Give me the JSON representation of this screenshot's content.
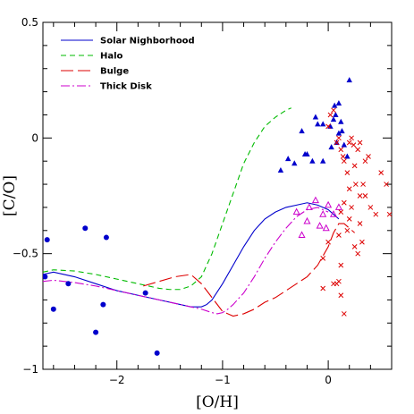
{
  "chart_data": {
    "type": "line",
    "xlabel": "[O/H]",
    "ylabel": "[C/O]",
    "xlim": [
      -2.7,
      0.6
    ],
    "ylim": [
      -1.0,
      0.5
    ],
    "x_ticks": [
      -2,
      -1,
      0
    ],
    "x_tick_labels": [
      "−2",
      "−1",
      "0"
    ],
    "y_ticks": [
      -1,
      -0.5,
      0,
      0.5
    ],
    "y_tick_labels": [
      "−1",
      "−0.5",
      "0",
      "0.5"
    ],
    "legend_position": "top-left",
    "series": [
      {
        "name": "Solar Nighborhood",
        "color": "#0000cc",
        "dash": "solid",
        "x": [
          -2.7,
          -2.6,
          -2.4,
          -2.2,
          -2.0,
          -1.8,
          -1.6,
          -1.4,
          -1.3,
          -1.2,
          -1.15,
          -1.1,
          -1.0,
          -0.9,
          -0.8,
          -0.7,
          -0.6,
          -0.5,
          -0.4,
          -0.3,
          -0.2,
          -0.1,
          0.0,
          0.05,
          0.1
        ],
        "y": [
          -0.59,
          -0.58,
          -0.6,
          -0.63,
          -0.66,
          -0.68,
          -0.7,
          -0.72,
          -0.73,
          -0.73,
          -0.72,
          -0.7,
          -0.63,
          -0.55,
          -0.47,
          -0.4,
          -0.35,
          -0.32,
          -0.3,
          -0.29,
          -0.28,
          -0.29,
          -0.31,
          -0.33,
          -0.35
        ]
      },
      {
        "name": "Halo",
        "color": "#00bb00",
        "dash": "6,4",
        "x": [
          -2.7,
          -2.6,
          -2.4,
          -2.2,
          -2.0,
          -1.8,
          -1.6,
          -1.5,
          -1.4,
          -1.3,
          -1.2,
          -1.1,
          -1.0,
          -0.9,
          -0.8,
          -0.7,
          -0.6,
          -0.5,
          -0.4,
          -0.35
        ],
        "y": [
          -0.58,
          -0.57,
          -0.575,
          -0.59,
          -0.61,
          -0.63,
          -0.65,
          -0.655,
          -0.655,
          -0.64,
          -0.6,
          -0.5,
          -0.37,
          -0.24,
          -0.11,
          -0.02,
          0.05,
          0.09,
          0.12,
          0.13
        ]
      },
      {
        "name": "Bulge",
        "color": "#dd0000",
        "dash": "14,5",
        "x": [
          -1.75,
          -1.6,
          -1.45,
          -1.3,
          -1.2,
          -1.1,
          -1.0,
          -0.9,
          -0.8,
          -0.7,
          -0.6,
          -0.5,
          -0.4,
          -0.3,
          -0.2,
          -0.1,
          0.0,
          0.05,
          0.1,
          0.15,
          0.2,
          0.25
        ],
        "y": [
          -0.64,
          -0.62,
          -0.6,
          -0.59,
          -0.63,
          -0.69,
          -0.75,
          -0.77,
          -0.76,
          -0.74,
          -0.71,
          -0.69,
          -0.66,
          -0.63,
          -0.6,
          -0.55,
          -0.47,
          -0.41,
          -0.37,
          -0.37,
          -0.39,
          -0.41
        ]
      },
      {
        "name": "Thick Disk",
        "color": "#cc00cc",
        "dash": "10,3,2,3",
        "x": [
          -2.7,
          -2.6,
          -2.4,
          -2.2,
          -2.0,
          -1.8,
          -1.6,
          -1.4,
          -1.2,
          -1.1,
          -1.05,
          -1.0,
          -0.95,
          -0.9,
          -0.8,
          -0.7,
          -0.6,
          -0.5,
          -0.4,
          -0.3,
          -0.2,
          -0.1,
          -0.05,
          0.0
        ],
        "y": [
          -0.62,
          -0.615,
          -0.625,
          -0.64,
          -0.66,
          -0.68,
          -0.7,
          -0.72,
          -0.74,
          -0.755,
          -0.76,
          -0.755,
          -0.74,
          -0.72,
          -0.67,
          -0.6,
          -0.52,
          -0.45,
          -0.39,
          -0.34,
          -0.31,
          -0.3,
          -0.31,
          -0.32
        ]
      }
    ],
    "scatter": [
      {
        "marker": "circle",
        "color": "#0000cc",
        "points": [
          [
            -2.68,
            -0.6
          ],
          [
            -2.66,
            -0.44
          ],
          [
            -2.6,
            -0.74
          ],
          [
            -2.46,
            -0.63
          ],
          [
            -2.3,
            -0.39
          ],
          [
            -2.2,
            -0.84
          ],
          [
            -2.13,
            -0.72
          ],
          [
            -2.1,
            -0.43
          ],
          [
            -1.73,
            -0.67
          ],
          [
            -1.62,
            -0.93
          ]
        ]
      },
      {
        "marker": "filled-triangle",
        "color": "#0000cc",
        "points": [
          [
            -0.45,
            -0.14
          ],
          [
            -0.38,
            -0.09
          ],
          [
            -0.32,
            -0.11
          ],
          [
            -0.25,
            0.03
          ],
          [
            -0.2,
            -0.07
          ],
          [
            -0.15,
            -0.1
          ],
          [
            -0.12,
            0.09
          ],
          [
            -0.1,
            0.06
          ],
          [
            -0.05,
            -0.1
          ],
          [
            0.02,
            0.05
          ],
          [
            0.03,
            -0.04
          ],
          [
            0.05,
            0.08
          ],
          [
            0.06,
            0.14
          ],
          [
            0.07,
            0.1
          ],
          [
            0.08,
            -0.02
          ],
          [
            0.1,
            0.02
          ],
          [
            0.12,
            0.07
          ],
          [
            0.13,
            0.03
          ],
          [
            0.15,
            -0.03
          ],
          [
            0.18,
            -0.08
          ],
          [
            0.2,
            0.25
          ],
          [
            0.1,
            0.15
          ],
          [
            -0.05,
            0.06
          ],
          [
            -0.22,
            -0.07
          ]
        ]
      },
      {
        "marker": "open-triangle",
        "color": "#cc00cc",
        "points": [
          [
            -0.3,
            -0.32
          ],
          [
            -0.25,
            -0.42
          ],
          [
            -0.2,
            -0.36
          ],
          [
            -0.12,
            -0.27
          ],
          [
            -0.05,
            -0.33
          ],
          [
            -0.02,
            -0.39
          ],
          [
            0.0,
            -0.29
          ],
          [
            0.05,
            -0.33
          ],
          [
            0.1,
            -0.3
          ],
          [
            -0.18,
            -0.3
          ],
          [
            -0.08,
            -0.38
          ]
        ]
      },
      {
        "marker": "cross",
        "color": "#dd0000",
        "points": [
          [
            0.0,
            0.05
          ],
          [
            0.02,
            0.1
          ],
          [
            0.05,
            0.12
          ],
          [
            0.08,
            -0.02
          ],
          [
            0.1,
            0.0
          ],
          [
            0.12,
            -0.05
          ],
          [
            0.15,
            -0.1
          ],
          [
            0.18,
            -0.15
          ],
          [
            0.2,
            -0.22
          ],
          [
            0.22,
            -0.3
          ],
          [
            0.25,
            -0.12
          ],
          [
            0.28,
            -0.05
          ],
          [
            0.3,
            -0.02
          ],
          [
            0.33,
            -0.2
          ],
          [
            0.35,
            -0.25
          ],
          [
            0.38,
            -0.08
          ],
          [
            0.4,
            -0.3
          ],
          [
            0.45,
            -0.33
          ],
          [
            0.5,
            -0.15
          ],
          [
            0.55,
            -0.2
          ],
          [
            0.58,
            -0.33
          ],
          [
            0.2,
            -0.02
          ],
          [
            0.22,
            0.0
          ],
          [
            0.24,
            -0.03
          ],
          [
            0.26,
            -0.2
          ],
          [
            0.3,
            -0.37
          ],
          [
            0.32,
            -0.45
          ],
          [
            0.28,
            -0.5
          ],
          [
            0.25,
            -0.47
          ],
          [
            0.15,
            -0.28
          ],
          [
            0.12,
            -0.32
          ],
          [
            0.1,
            -0.42
          ],
          [
            0.12,
            -0.55
          ],
          [
            0.1,
            -0.62
          ],
          [
            0.08,
            -0.63
          ],
          [
            0.05,
            -0.63
          ],
          [
            0.12,
            -0.68
          ],
          [
            0.15,
            -0.76
          ],
          [
            -0.05,
            -0.65
          ],
          [
            -0.05,
            -0.52
          ],
          [
            0.0,
            -0.45
          ],
          [
            0.18,
            -0.4
          ],
          [
            0.2,
            -0.35
          ],
          [
            0.3,
            -0.25
          ],
          [
            0.35,
            -0.1
          ],
          [
            0.14,
            -0.08
          ]
        ]
      }
    ]
  }
}
